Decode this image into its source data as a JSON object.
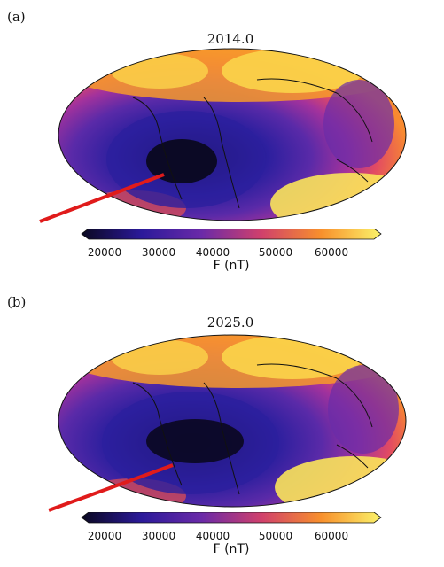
{
  "panels": [
    {
      "label": "(a)",
      "title": "2014.0"
    },
    {
      "label": "(b)",
      "title": "2025.0"
    }
  ],
  "colorbar": {
    "label": "F (nT)",
    "ticks": [
      "20000",
      "30000",
      "40000",
      "50000",
      "60000"
    ],
    "min": 20000,
    "max": 65000,
    "extend": "both"
  },
  "colors": {
    "low": "#0a0820",
    "mid_low": "#2b1a9a",
    "mid": "#7a2aa8",
    "mid_high": "#e0406a",
    "high": "#f79a2a",
    "max": "#fbf36a",
    "arrow": "#e01b1b"
  }
}
